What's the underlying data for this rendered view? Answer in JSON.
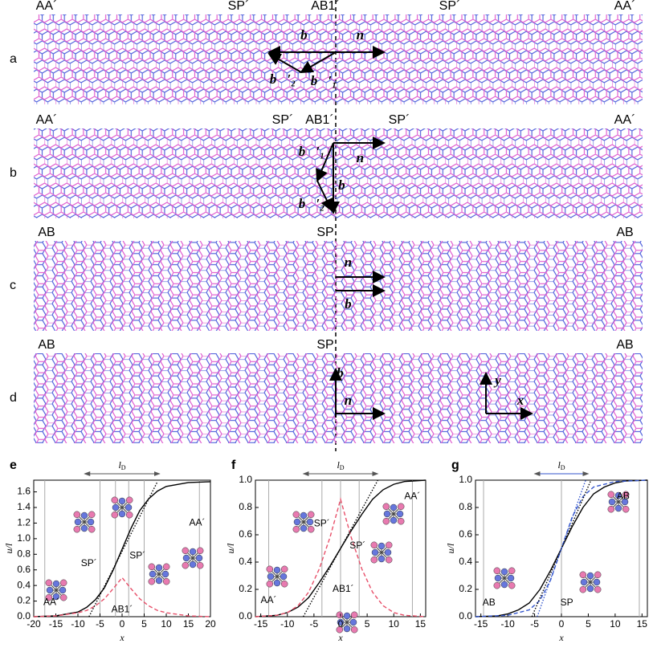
{
  "panels": [
    {
      "letter": "a",
      "labels": [
        "AA´",
        "SP´",
        "AB1´",
        "SP´",
        "AA´"
      ],
      "vectors": [
        "b⃗",
        "n⃗",
        "b⃗′₂",
        "b⃗′₁"
      ]
    },
    {
      "letter": "b",
      "labels": [
        "AA´",
        "SP´",
        "AB1´",
        "SP´",
        "AA´"
      ],
      "vectors": [
        "b⃗′₁",
        "n⃗",
        "b⃗",
        "b⃗′₂"
      ]
    },
    {
      "letter": "c",
      "labels": [
        "AB",
        "SP",
        "AB"
      ],
      "vectors": [
        "n⃗",
        "b⃗"
      ]
    },
    {
      "letter": "d",
      "labels": [
        "AB",
        "SP",
        "AB"
      ],
      "vectors": [
        "b⃗",
        "n⃗",
        "y",
        "x"
      ]
    }
  ],
  "chart_data": [
    {
      "type": "line",
      "panel": "e",
      "xlabel": "x",
      "ylabel": "u/l",
      "ld": {
        "main": "l",
        "sub": "D"
      },
      "xlim": [
        -20,
        20
      ],
      "xticks": [
        -20,
        -15,
        -10,
        -5,
        0,
        5,
        10,
        15,
        20
      ],
      "ylim": [
        0,
        1.75
      ],
      "yticks": [
        {
          "value": 0,
          "label": "0.0"
        },
        0.2,
        0.4,
        0.6,
        0.8,
        {
          "value": 1,
          "label": "1.0"
        },
        1.2,
        1.4,
        1.6
      ],
      "vlines": [
        -17.5,
        -5,
        -1.5,
        1.5,
        5,
        17.5
      ],
      "annotations": [
        "AA´",
        "SP´",
        "AB1´",
        "SP´",
        "AA´"
      ],
      "series": [
        {
          "color": "#000000",
          "style": "solid",
          "x": [
            -20,
            -15,
            -10,
            -8,
            -6,
            -4,
            -2,
            0,
            2,
            4,
            6,
            8,
            10,
            15,
            20
          ],
          "values": [
            0,
            0.01,
            0.06,
            0.12,
            0.22,
            0.37,
            0.6,
            0.866,
            1.13,
            1.36,
            1.51,
            1.61,
            1.67,
            1.72,
            1.73
          ]
        },
        {
          "color": "#e8506a",
          "style": "dashed",
          "x": [
            -20,
            -15,
            -10,
            -8,
            -6,
            -4,
            -2,
            0,
            2,
            4,
            6,
            8,
            10,
            15,
            20
          ],
          "values": [
            0,
            0.01,
            0.05,
            0.08,
            0.14,
            0.23,
            0.36,
            0.5,
            0.36,
            0.23,
            0.14,
            0.08,
            0.05,
            0.01,
            0
          ]
        },
        {
          "color": "#000000",
          "style": "dotted",
          "x": [
            -7.5,
            8
          ],
          "values": [
            0,
            1.73
          ]
        }
      ]
    },
    {
      "type": "line",
      "panel": "f",
      "xlabel": "x",
      "ylabel": "u/l",
      "ld": {
        "main": "l",
        "sub": "D"
      },
      "xlim": [
        -16,
        16
      ],
      "xticks": [
        -15,
        -10,
        -5,
        0,
        5,
        10,
        15
      ],
      "ylim": [
        0,
        1
      ],
      "yticks": [
        {
          "value": 0,
          "label": "0.0"
        },
        0.2,
        0.4,
        0.6,
        0.8,
        {
          "value": 1,
          "label": "1.0"
        }
      ],
      "vlines": [
        -13.5,
        -3.5,
        0,
        3.5,
        13.5
      ],
      "annotations": [
        "AA´",
        "SP´",
        "AB1´",
        "SP´",
        "AA´"
      ],
      "series": [
        {
          "color": "#000000",
          "style": "solid",
          "x": [
            -16,
            -12,
            -10,
            -8,
            -6,
            -4,
            -2,
            0,
            2,
            4,
            6,
            8,
            10,
            12,
            16
          ],
          "values": [
            0,
            0.01,
            0.03,
            0.07,
            0.14,
            0.25,
            0.37,
            0.5,
            0.63,
            0.75,
            0.86,
            0.93,
            0.97,
            0.99,
            1
          ]
        },
        {
          "color": "#e8506a",
          "style": "dashed",
          "x": [
            -16,
            -12,
            -10,
            -8,
            -6,
            -4,
            -2,
            0,
            2,
            4,
            6,
            8,
            10,
            12,
            16
          ],
          "values": [
            0,
            0.01,
            0.03,
            0.08,
            0.18,
            0.35,
            0.58,
            0.86,
            0.58,
            0.35,
            0.18,
            0.08,
            0.03,
            0.01,
            0
          ]
        },
        {
          "color": "#000000",
          "style": "dotted",
          "x": [
            -7,
            7
          ],
          "values": [
            0,
            1
          ]
        }
      ]
    },
    {
      "type": "line",
      "panel": "g",
      "xlabel": "x",
      "ylabel": "u/l",
      "ld": {
        "main": "l",
        "sub": "D"
      },
      "xlim": [
        -16,
        16
      ],
      "xticks": [
        -15,
        -10,
        -5,
        0,
        5,
        10,
        15
      ],
      "ylim": [
        0,
        1
      ],
      "yticks": [
        {
          "value": 0,
          "label": "0.0"
        },
        0.2,
        0.4,
        0.6,
        0.8,
        {
          "value": 1,
          "label": "1.0"
        }
      ],
      "vlines": [
        -14.5,
        0,
        14.5
      ],
      "annotations": [
        "AB",
        "SP",
        "AB"
      ],
      "series": [
        {
          "color": "#000000",
          "style": "solid",
          "x": [
            -16,
            -12,
            -10,
            -8,
            -6,
            -4,
            -2,
            0,
            2,
            4,
            6,
            8,
            10,
            12,
            16
          ],
          "values": [
            0,
            0.005,
            0.02,
            0.05,
            0.1,
            0.2,
            0.34,
            0.5,
            0.66,
            0.8,
            0.9,
            0.95,
            0.98,
            0.995,
            1
          ]
        },
        {
          "color": "#3355cc",
          "style": "dashed",
          "x": [
            -16,
            -10,
            -6,
            -4,
            -2,
            0,
            2,
            4,
            6,
            10,
            16
          ],
          "values": [
            0,
            0.01,
            0.05,
            0.12,
            0.27,
            0.5,
            0.73,
            0.88,
            0.95,
            0.99,
            1
          ]
        },
        {
          "color": "#000000",
          "style": "dotted",
          "x": [
            -5.5,
            5.5
          ],
          "values": [
            0,
            1
          ]
        },
        {
          "color": "#3355cc",
          "style": "dotted",
          "x": [
            -4.5,
            4.5
          ],
          "values": [
            0,
            1
          ]
        }
      ]
    }
  ]
}
